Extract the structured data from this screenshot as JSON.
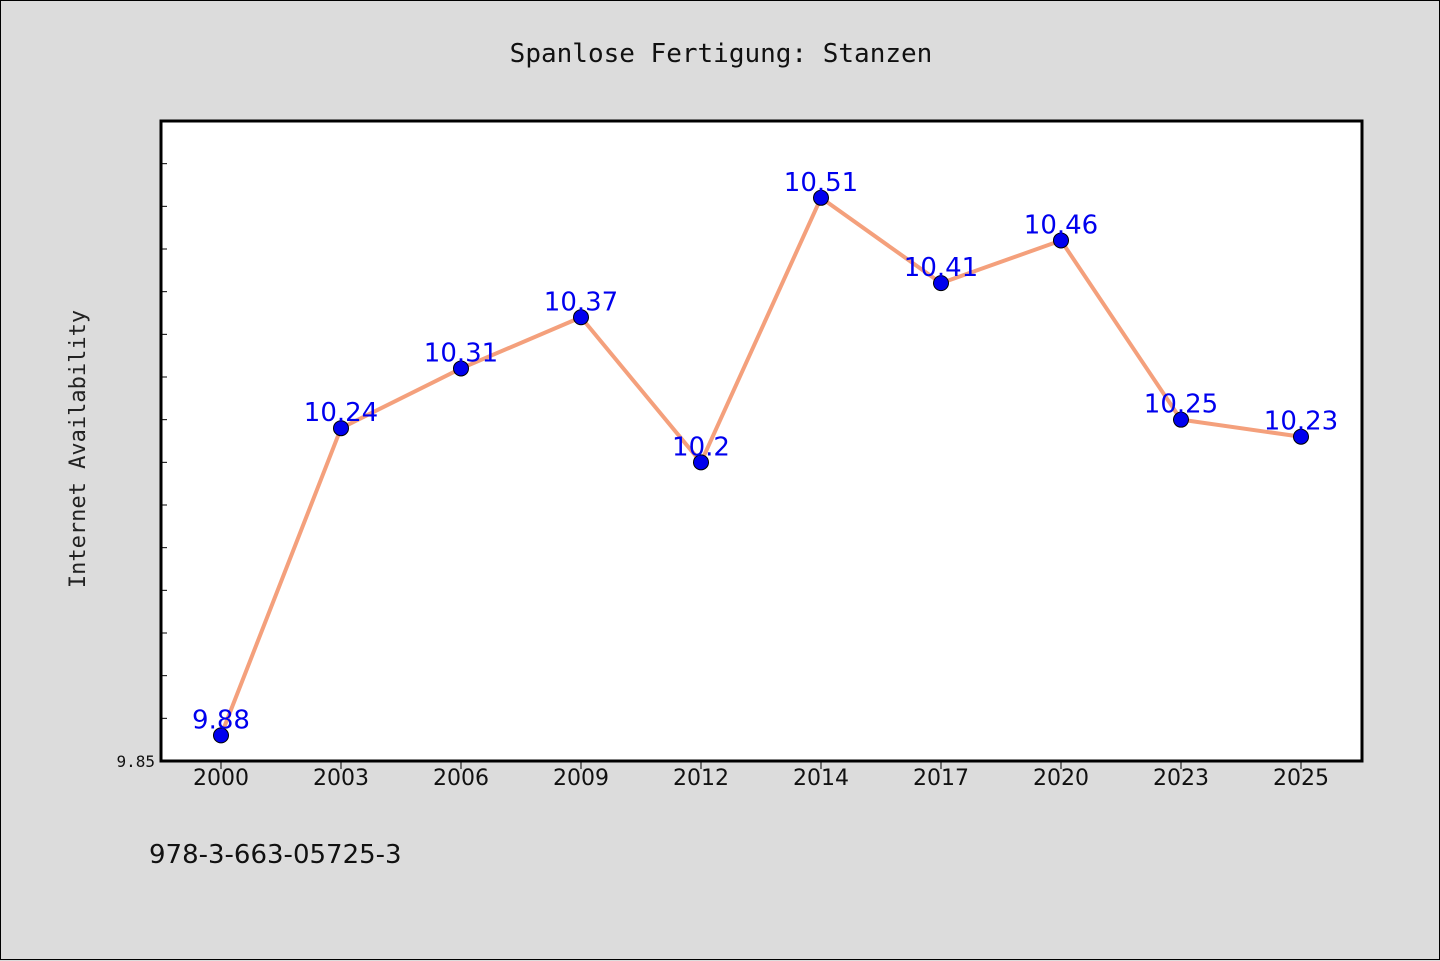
{
  "chart_data": {
    "type": "line",
    "title": "Spanlose Fertigung: Stanzen",
    "xlabel": "",
    "ylabel": "Internet Availability",
    "categories": [
      "2000",
      "2003",
      "2006",
      "2009",
      "2012",
      "2014",
      "2017",
      "2020",
      "2023",
      "2025"
    ],
    "series": [
      {
        "values": [
          9.88,
          10.24,
          10.31,
          10.37,
          10.2,
          10.51,
          10.41,
          10.46,
          10.25,
          10.23
        ],
        "labels": [
          "9.88",
          "10.24",
          "10.31",
          "10.37",
          "10.2",
          "10.51",
          "10.41",
          "10.46",
          "10.25",
          "10.23"
        ]
      }
    ],
    "ylim": [
      9.85,
      10.6
    ],
    "yticks_labeled": [
      "9.85"
    ],
    "grid": false,
    "line_color": "#f4a07c",
    "marker_color": "#0000ee",
    "label_color": "#0000ee"
  },
  "footer": {
    "text": "978-3-663-05725-3"
  }
}
